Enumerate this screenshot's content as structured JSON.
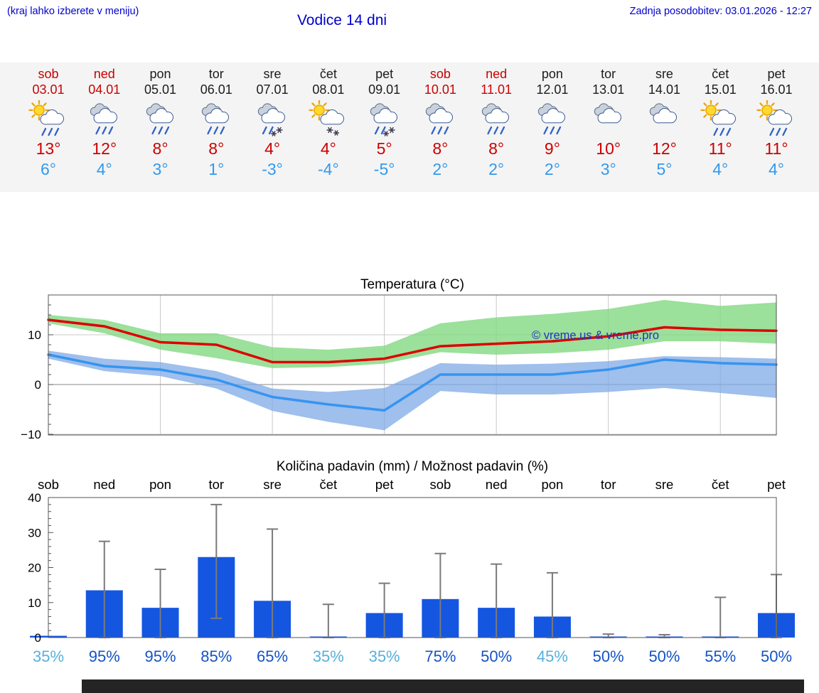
{
  "header": {
    "hint": "(kraj lahko izberete v meniju)",
    "title": "Vodice 14 dni",
    "updated": "Zadnja posodobitev: 03.01.2026 - 12:27"
  },
  "forecast": {
    "days": [
      {
        "name": "sob",
        "date": "03.01",
        "weekend": true,
        "icon": "sun-cloud-rain",
        "tmax": "13°",
        "tmin": "6°"
      },
      {
        "name": "ned",
        "date": "04.01",
        "weekend": true,
        "icon": "cloud-rain",
        "tmax": "12°",
        "tmin": "4°"
      },
      {
        "name": "pon",
        "date": "05.01",
        "weekend": false,
        "icon": "cloud-rain",
        "tmax": "8°",
        "tmin": "3°"
      },
      {
        "name": "tor",
        "date": "06.01",
        "weekend": false,
        "icon": "cloud-rain",
        "tmax": "8°",
        "tmin": "1°"
      },
      {
        "name": "sre",
        "date": "07.01",
        "weekend": false,
        "icon": "cloud-sleet",
        "tmax": "4°",
        "tmin": "-3°"
      },
      {
        "name": "čet",
        "date": "08.01",
        "weekend": false,
        "icon": "sun-cloud-snow",
        "tmax": "4°",
        "tmin": "-4°"
      },
      {
        "name": "pet",
        "date": "09.01",
        "weekend": false,
        "icon": "cloud-sleet",
        "tmax": "5°",
        "tmin": "-5°"
      },
      {
        "name": "sob",
        "date": "10.01",
        "weekend": true,
        "icon": "cloud-rain",
        "tmax": "8°",
        "tmin": "2°"
      },
      {
        "name": "ned",
        "date": "11.01",
        "weekend": true,
        "icon": "cloud-rain",
        "tmax": "8°",
        "tmin": "2°"
      },
      {
        "name": "pon",
        "date": "12.01",
        "weekend": false,
        "icon": "cloud-rain",
        "tmax": "9°",
        "tmin": "2°"
      },
      {
        "name": "tor",
        "date": "13.01",
        "weekend": false,
        "icon": "clouds",
        "tmax": "10°",
        "tmin": "3°"
      },
      {
        "name": "sre",
        "date": "14.01",
        "weekend": false,
        "icon": "clouds",
        "tmax": "12°",
        "tmin": "5°"
      },
      {
        "name": "čet",
        "date": "15.01",
        "weekend": false,
        "icon": "sun-cloud-rain",
        "tmax": "11°",
        "tmin": "4°"
      },
      {
        "name": "pet",
        "date": "16.01",
        "weekend": false,
        "icon": "sun-cloud-rain",
        "tmax": "11°",
        "tmin": "4°"
      }
    ]
  },
  "chart_data": [
    {
      "type": "line",
      "title": "Temperatura (°C)",
      "categories": [
        "sob",
        "ned",
        "pon",
        "tor",
        "sre",
        "čet",
        "pet",
        "sob",
        "ned",
        "pon",
        "tor",
        "sre",
        "čet",
        "pet"
      ],
      "ylim": [
        -12,
        18
      ],
      "yticks": [
        10,
        0,
        -10
      ],
      "ytick_labels": [
        "10",
        "0",
        "−10"
      ],
      "grid": "on",
      "legend": "none",
      "series": [
        {
          "name": "max-temperature",
          "color": "#dd0000",
          "values": [
            13,
            11.7,
            8.5,
            8,
            4.5,
            4.5,
            5.2,
            7.7,
            8.2,
            8.7,
            9.7,
            11.5,
            11,
            10.8
          ]
        },
        {
          "name": "min-temperature",
          "color": "#3694f0",
          "values": [
            6,
            3.7,
            3,
            1,
            -2.5,
            -4,
            -5.2,
            2,
            2,
            2,
            3,
            5,
            4.3,
            4
          ]
        }
      ],
      "bands": [
        {
          "name": "max-temperature-range",
          "color": "#82d882",
          "opacity": 0.8,
          "upper": [
            14,
            13,
            10.3,
            10.3,
            7.5,
            7,
            7.8,
            12.3,
            13.5,
            14.2,
            15.2,
            17,
            15.8,
            16.5
          ],
          "lower": [
            12.3,
            10.3,
            7,
            5.3,
            3.3,
            3.5,
            4.2,
            6.5,
            6,
            6.3,
            7,
            8.7,
            8.7,
            8.2
          ]
        },
        {
          "name": "min-temperature-range",
          "color": "#7fa9e6",
          "opacity": 0.75,
          "upper": [
            6.8,
            5.2,
            4.5,
            2.7,
            -0.8,
            -1.5,
            -0.7,
            4.3,
            4,
            4.2,
            4.7,
            5.7,
            5.5,
            5.2
          ],
          "lower": [
            5.2,
            2.7,
            1.7,
            -0.8,
            -5.3,
            -7.5,
            -9.2,
            -1.3,
            -2,
            -2,
            -1.5,
            -0.7,
            -1.7,
            -2.7
          ]
        }
      ],
      "watermark": "© vreme.us & vreme.pro"
    },
    {
      "type": "bar",
      "title": "Količina padavin (mm) / Možnost padavin (%)",
      "categories": [
        "sob",
        "ned",
        "pon",
        "tor",
        "sre",
        "čet",
        "pet",
        "sob",
        "ned",
        "pon",
        "tor",
        "sre",
        "čet",
        "pet"
      ],
      "values": [
        0.5,
        13.5,
        8.5,
        23,
        10.5,
        0.3,
        7,
        11,
        8.5,
        6,
        0.3,
        0.3,
        0.3,
        7
      ],
      "whisker_low": [
        0,
        0,
        0,
        5.5,
        0,
        0,
        0,
        0,
        0,
        0,
        0,
        0,
        0,
        0
      ],
      "whisker_high": [
        0,
        27.5,
        19.5,
        38,
        31,
        9.5,
        15.5,
        24,
        21,
        18.5,
        1,
        0.8,
        11.5,
        18
      ],
      "ylim": [
        0,
        40
      ],
      "yticks": [
        0,
        10,
        20,
        30,
        40
      ],
      "bar_color": "#1556e0",
      "whisker_color": "#7a7a7a",
      "prob_color_low": "#56b0dd",
      "prob_color_high": "#1553c4",
      "probabilities": [
        {
          "label": "35%",
          "emphasis": "low"
        },
        {
          "label": "95%",
          "emphasis": "high"
        },
        {
          "label": "95%",
          "emphasis": "high"
        },
        {
          "label": "85%",
          "emphasis": "high"
        },
        {
          "label": "65%",
          "emphasis": "high"
        },
        {
          "label": "35%",
          "emphasis": "low"
        },
        {
          "label": "35%",
          "emphasis": "low"
        },
        {
          "label": "75%",
          "emphasis": "high"
        },
        {
          "label": "50%",
          "emphasis": "high"
        },
        {
          "label": "45%",
          "emphasis": "low"
        },
        {
          "label": "50%",
          "emphasis": "high"
        },
        {
          "label": "50%",
          "emphasis": "high"
        },
        {
          "label": "55%",
          "emphasis": "high"
        },
        {
          "label": "50%",
          "emphasis": "high"
        }
      ]
    }
  ]
}
